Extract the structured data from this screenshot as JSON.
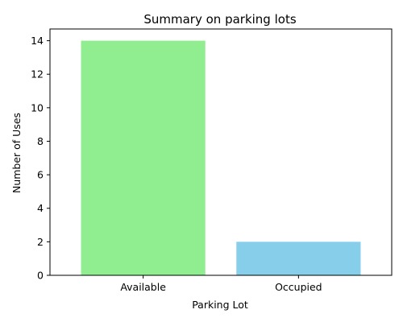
{
  "chart_data": {
    "type": "bar",
    "title": "Summary on parking lots",
    "xlabel": "Parking Lot",
    "ylabel": "Number of Uses",
    "categories": [
      "Available",
      "Occupied"
    ],
    "values": [
      14,
      2
    ],
    "colors": [
      "#90ee90",
      "#87ceeb"
    ],
    "ylim": [
      0,
      14.7
    ],
    "yticks": [
      0,
      2,
      4,
      6,
      8,
      10,
      12,
      14
    ],
    "grid": false,
    "legend": "none"
  }
}
